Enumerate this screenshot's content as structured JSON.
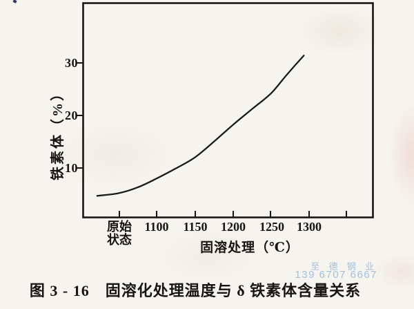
{
  "figure": {
    "caption": "图 3 - 16　固溶化处理温度与 δ 铁素体含量关系"
  },
  "watermark": {
    "company": "至 德 钢 业",
    "phone": "139 6707 6667",
    "color": "#a3c0dc"
  },
  "chart_data": {
    "type": "line",
    "title": "",
    "xlabel": "固溶处理（℃）",
    "ylabel": "铁素体（%）",
    "x_tick_labels": [
      "原始\n状态",
      "1100",
      "1150",
      "1200",
      "1250",
      "1300"
    ],
    "x_extra_unlabeled_tick": true,
    "y_tick_labels": [
      "30",
      "20",
      "10"
    ],
    "y_tick_values": [
      30,
      20,
      10
    ],
    "ylim_approx": [
      0.5,
      41
    ],
    "grid": false,
    "legend": "none",
    "frame": "full box, ticks inside on x-axis, outside on y-axis",
    "line_color": "#1a1a1a",
    "series": [
      {
        "name": "δ铁素体含量",
        "points_readout": [
          {
            "x": "原始状态",
            "y": 5
          },
          {
            "x": 1100,
            "y": 8
          },
          {
            "x": 1150,
            "y": 12
          },
          {
            "x": 1200,
            "y": 18
          },
          {
            "x": 1250,
            "y": 24
          },
          {
            "x": 1290,
            "y": 31
          }
        ],
        "curve_profile_axis_units": [
          [
            1022,
            4.7
          ],
          [
            1050,
            5.2
          ],
          [
            1075,
            6.3
          ],
          [
            1100,
            8.0
          ],
          [
            1125,
            9.9
          ],
          [
            1150,
            12.0
          ],
          [
            1175,
            15.0
          ],
          [
            1200,
            18.2
          ],
          [
            1225,
            21.2
          ],
          [
            1250,
            24.2
          ],
          [
            1271,
            27.8
          ],
          [
            1293,
            31.4
          ]
        ],
        "note": "axis-unit x values below 1100 fall in the 原始状态 (as-received) zone of the x axis"
      }
    ]
  }
}
